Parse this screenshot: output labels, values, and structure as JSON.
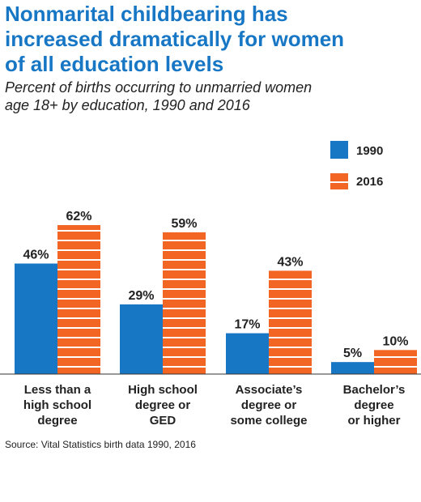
{
  "header": {
    "title_lines": [
      "Nonmarital childbearing has",
      "increased dramatically for women",
      "of all education levels"
    ],
    "subtitle_lines": [
      "Percent of births occurring to unmarried women",
      "age 18+ by education, 1990 and 2016"
    ]
  },
  "colors": {
    "title": "#1877c5",
    "series_1990": "#1877c5",
    "series_2016": "#f26522",
    "stripe": "#ffffff"
  },
  "chart_data": {
    "type": "bar",
    "categories": [
      [
        "Less than a",
        "high school",
        "degree"
      ],
      [
        "High school",
        "degree or",
        "GED"
      ],
      [
        "Associate’s",
        "degree or",
        "some college"
      ],
      [
        "Bachelor’s",
        "degree",
        "or higher"
      ]
    ],
    "series": [
      {
        "name": "1990",
        "values": [
          46,
          29,
          17,
          5
        ],
        "labels": [
          "46%",
          "29%",
          "17%",
          "5%"
        ]
      },
      {
        "name": "2016",
        "values": [
          62,
          59,
          43,
          10
        ],
        "labels": [
          "62%",
          "59%",
          "43%",
          "10%"
        ]
      }
    ],
    "ylim": [
      0,
      62
    ],
    "grid": false,
    "legend_position": "top-right"
  },
  "footer": {
    "source": "Source: Vital Statistics birth data 1990, 2016"
  }
}
